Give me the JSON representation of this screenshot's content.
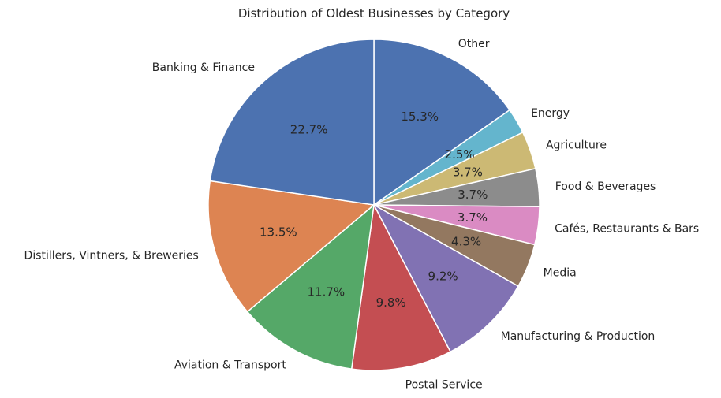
{
  "chart_data": {
    "type": "pie",
    "title": "Distribution of Oldest Businesses by Category",
    "start": "top, clockwise",
    "slices": [
      {
        "label": "Other",
        "value": 15.3,
        "pct_label": "15.3%",
        "color": "#4c72b0"
      },
      {
        "label": "Energy",
        "value": 2.5,
        "pct_label": "2.5%",
        "color": "#64b5cd"
      },
      {
        "label": "Agriculture",
        "value": 3.7,
        "pct_label": "3.7%",
        "color": "#ccb974"
      },
      {
        "label": "Food & Beverages",
        "value": 3.7,
        "pct_label": "3.7%",
        "color": "#8c8c8c"
      },
      {
        "label": "Cafés, Restaurants & Bars",
        "value": 3.7,
        "pct_label": "3.7%",
        "color": "#da8bc3"
      },
      {
        "label": "Media",
        "value": 4.3,
        "pct_label": "4.3%",
        "color": "#937860"
      },
      {
        "label": "Manufacturing & Production",
        "value": 9.2,
        "pct_label": "9.2%",
        "color": "#8172b3"
      },
      {
        "label": "Postal Service",
        "value": 9.8,
        "pct_label": "9.8%",
        "color": "#c44e52"
      },
      {
        "label": "Aviation & Transport",
        "value": 11.7,
        "pct_label": "11.7%",
        "color": "#55a868"
      },
      {
        "label": "Distillers, Vintners, & Breweries",
        "value": 13.5,
        "pct_label": "13.5%",
        "color": "#dd8452"
      },
      {
        "label": "Banking & Finance",
        "value": 22.7,
        "pct_label": "22.7%",
        "color": "#4c72b0"
      }
    ]
  }
}
